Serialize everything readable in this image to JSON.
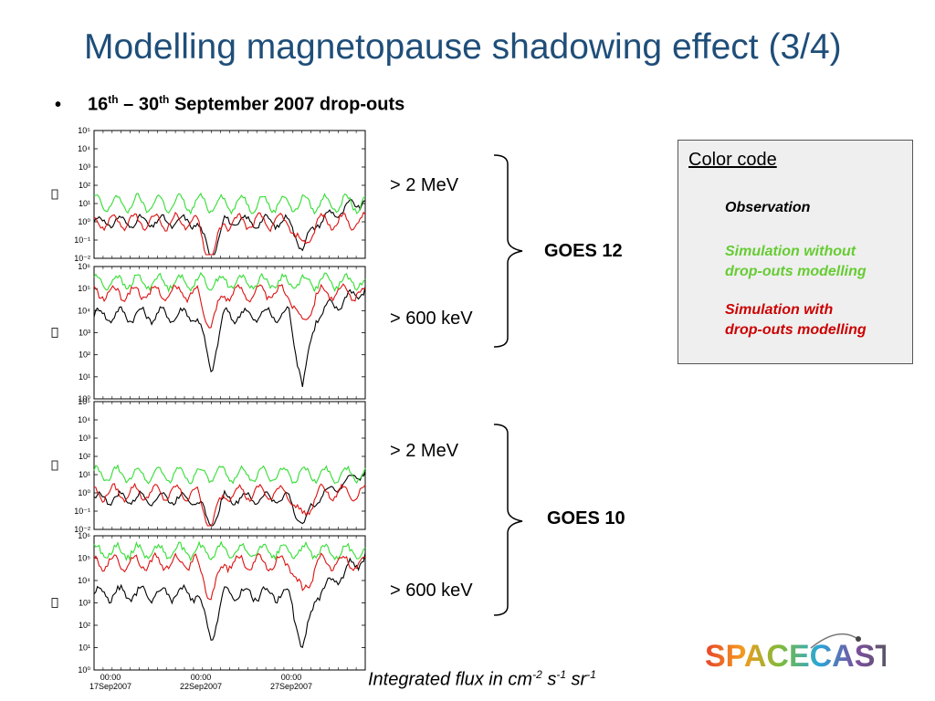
{
  "slide": {
    "title": "Modelling magnetopause shadowing effect (3/4)",
    "bullet": {
      "marker": "•",
      "parts": [
        "16",
        "th",
        " – 30",
        "th",
        " September 2007 drop-outs"
      ]
    }
  },
  "energy_labels": [
    "> 2 MeV",
    "> 600 keV",
    "> 2 MeV",
    "> 600 keV"
  ],
  "satellites": [
    "GOES 12",
    "GOES 10"
  ],
  "legend": {
    "title": "Color code",
    "items": [
      {
        "lines": [
          "Observation"
        ],
        "color": "#000000"
      },
      {
        "lines": [
          "Simulation without",
          "drop-outs modelling"
        ],
        "color": "#66cc33"
      },
      {
        "lines": [
          "Simulation with",
          "drop-outs modelling"
        ],
        "color": "#cc0000"
      }
    ]
  },
  "caption": {
    "parts": [
      "Integrated flux in cm",
      "-2",
      " s",
      "-1",
      " sr",
      "-1"
    ]
  },
  "logo": {
    "text": "SPACECAST"
  },
  "colors": {
    "title": "#1f4e79",
    "observation": "#000000",
    "sim_without": "#33dd33",
    "sim_with": "#dd1111"
  },
  "chart_data": [
    {
      "type": "line",
      "title": "",
      "xlabel": "",
      "ylabel": "",
      "y_scale": "log",
      "ytick_labels": [
        "10⁵",
        "10⁴",
        "10³",
        "10²",
        "10¹",
        "10⁰",
        "10⁻¹",
        "10⁻²"
      ],
      "xtick_labels": [],
      "series": [
        {
          "name": "Observation",
          "color": "#000000",
          "base": 2.0,
          "amp": 0.3,
          "dips": [
            [
              0.43,
              2.0
            ],
            [
              0.77,
              1.5
            ]
          ],
          "rise": 1.2
        },
        {
          "name": "Simulation without drop-outs modelling",
          "color": "#33dd33",
          "base": 3.0,
          "amp": 0.45
        },
        {
          "name": "Simulation with drop-outs modelling",
          "color": "#dd1111",
          "base": 2.0,
          "amp": 0.4,
          "dips": [
            [
              0.43,
              2.3
            ],
            [
              0.77,
              1.5
            ]
          ]
        }
      ]
    },
    {
      "type": "line",
      "title": "",
      "xlabel": "",
      "ylabel": "",
      "y_scale": "log",
      "ytick_labels": [
        "10⁶",
        "10⁵",
        "10⁴",
        "10³",
        "10²",
        "10¹",
        "10⁰"
      ],
      "xtick_labels": [],
      "series": [
        {
          "name": "Observation",
          "color": "#000000",
          "base": 3.8,
          "amp": 0.3,
          "dips": [
            [
              0.43,
              2.5
            ],
            [
              0.77,
              3.2
            ]
          ],
          "rise": 1.2
        },
        {
          "name": "Simulation without drop-outs modelling",
          "color": "#33dd33",
          "base": 5.3,
          "amp": 0.3
        },
        {
          "name": "Simulation with drop-outs modelling",
          "color": "#dd1111",
          "base": 4.8,
          "amp": 0.3,
          "dips": [
            [
              0.43,
              1.5
            ],
            [
              0.77,
              1.5
            ]
          ]
        }
      ]
    },
    {
      "type": "line",
      "title": "",
      "xlabel": "",
      "ylabel": "",
      "y_scale": "log",
      "ytick_labels": [
        "10⁵",
        "10⁴",
        "10³",
        "10²",
        "10¹",
        "10⁰",
        "10⁻¹",
        "10⁻²"
      ],
      "xtick_labels": [],
      "series": [
        {
          "name": "Observation",
          "color": "#000000",
          "base": 1.7,
          "amp": 0.3,
          "dips": [
            [
              0.43,
              1.6
            ],
            [
              0.77,
              1.5
            ]
          ],
          "rise": 1.5
        },
        {
          "name": "Simulation without drop-outs modelling",
          "color": "#33dd33",
          "base": 3.0,
          "amp": 0.4
        },
        {
          "name": "Simulation with drop-outs modelling",
          "color": "#dd1111",
          "base": 2.0,
          "amp": 0.4,
          "dips": [
            [
              0.43,
              2.0
            ],
            [
              0.77,
              1.5
            ]
          ]
        }
      ]
    },
    {
      "type": "line",
      "title": "",
      "xlabel": "",
      "ylabel": "",
      "y_scale": "log",
      "ytick_labels": [
        "10⁶",
        "10⁵",
        "10⁴",
        "10³",
        "10²",
        "10¹",
        "10⁰"
      ],
      "xtick_labels": [
        "00:00\n17Sep2007",
        "00:00\n22Sep2007",
        "00:00\n27Sep2007"
      ],
      "series": [
        {
          "name": "Observation",
          "color": "#000000",
          "base": 3.4,
          "amp": 0.3,
          "dips": [
            [
              0.43,
              2.0
            ],
            [
              0.77,
              2.5
            ]
          ],
          "rise": 1.7
        },
        {
          "name": "Simulation without drop-outs modelling",
          "color": "#33dd33",
          "base": 5.3,
          "amp": 0.3
        },
        {
          "name": "Simulation with drop-outs modelling",
          "color": "#dd1111",
          "base": 4.8,
          "amp": 0.3,
          "dips": [
            [
              0.43,
              1.6
            ],
            [
              0.77,
              1.5
            ]
          ]
        }
      ]
    }
  ]
}
